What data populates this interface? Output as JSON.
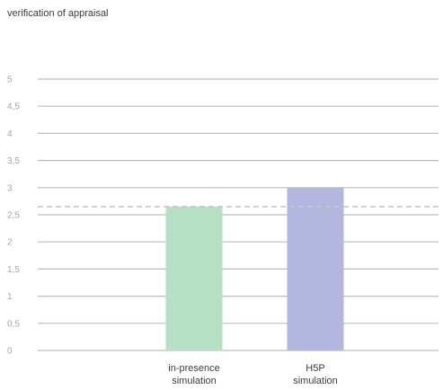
{
  "chart_data": {
    "type": "bar",
    "title": "verification of appraisal",
    "categories": [
      [
        "in-presence",
        "simulation"
      ],
      [
        "H5P",
        "simulation"
      ]
    ],
    "values": [
      2.65,
      3.0
    ],
    "bar_colors": [
      "#b7dfc4",
      "#b3b6de"
    ],
    "ylim": [
      0,
      5
    ],
    "y_ticks": [
      "0",
      "0,5",
      "1",
      "1,5",
      "2",
      "2,5",
      "3",
      "3,5",
      "4",
      "4,5",
      "5"
    ],
    "grid": true,
    "reference_line": {
      "value": 2.65,
      "style": "dashed",
      "color": "#c8c8cc"
    },
    "legend": "none"
  },
  "colors": {
    "gridline": "#bdbdbd",
    "tick_text": "#a6a6a6",
    "title_text": "#3a3a3a"
  }
}
